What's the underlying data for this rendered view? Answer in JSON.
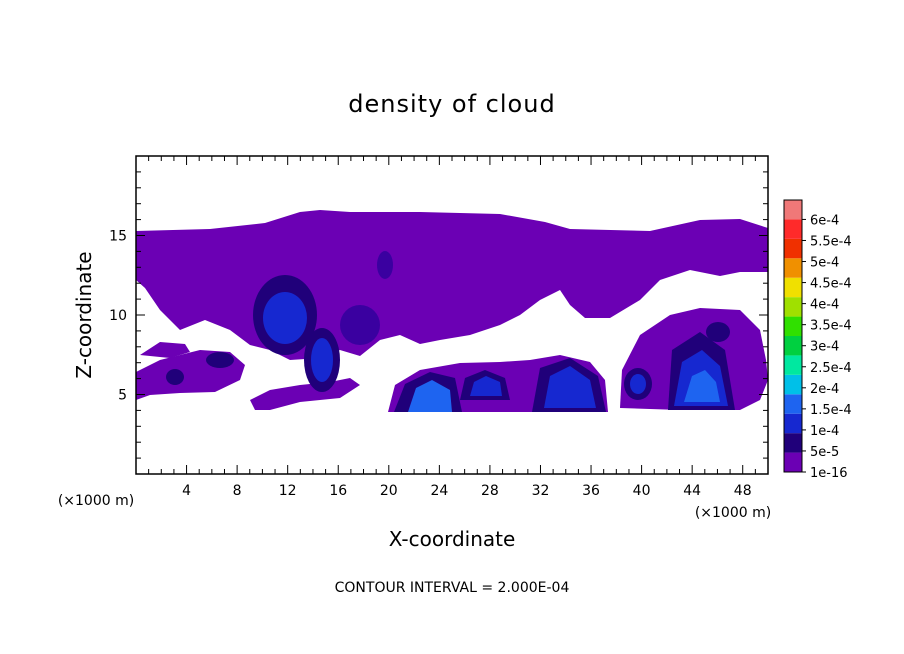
{
  "chart_data": {
    "type": "heatmap",
    "title": "density of cloud",
    "xlabel": "X-coordinate",
    "ylabel": "Z-coordinate",
    "x_unit": "(×1000 m)",
    "y_unit": "(×1000 m)",
    "xlim": [
      0,
      50
    ],
    "ylim": [
      0,
      20
    ],
    "x_ticks": [
      "4",
      "8",
      "12",
      "16",
      "20",
      "24",
      "28",
      "32",
      "36",
      "40",
      "44",
      "48"
    ],
    "y_ticks": [
      "5",
      "10",
      "15"
    ],
    "colorbar": {
      "levels": [
        "1e-16",
        "5e-5",
        "1e-4",
        "1.5e-4",
        "2e-4",
        "2.5e-4",
        "3e-4",
        "3.5e-4",
        "4e-4",
        "4.5e-4",
        "5e-4",
        "5.5e-4",
        "6e-4"
      ],
      "colors": [
        "#6b00b4",
        "#20007a",
        "#1628d0",
        "#1e64f0",
        "#00c0e8",
        "#00e8a0",
        "#00d040",
        "#30e000",
        "#a0e000",
        "#f0e000",
        "#f09000",
        "#f03000",
        "#ff2a2a",
        "#f07878"
      ]
    },
    "cloud_layers": [
      {
        "name": "upper",
        "level": "1e-16",
        "x_range": [
          0,
          50
        ],
        "z_range": [
          8,
          16.5
        ]
      },
      {
        "name": "lower",
        "level": "1e-16",
        "x_range": [
          0,
          50
        ],
        "z_range": [
          3.5,
          9.5
        ]
      }
    ],
    "cores": [
      {
        "x": 11.5,
        "z": 10,
        "level": "1e-4"
      },
      {
        "x": 14.5,
        "z": 7.5,
        "level": "1e-4"
      },
      {
        "x": 23.5,
        "z": 5.3,
        "level": "1.5e-4"
      },
      {
        "x": 27,
        "z": 5.5,
        "level": "1e-4"
      },
      {
        "x": 33.5,
        "z": 5.5,
        "level": "1e-4"
      },
      {
        "x": 39,
        "z": 5.8,
        "level": "1e-4"
      },
      {
        "x": 44.5,
        "z": 5.5,
        "level": "1.5e-4"
      }
    ],
    "contour_interval": "CONTOUR INTERVAL = 2.000E-04"
  }
}
